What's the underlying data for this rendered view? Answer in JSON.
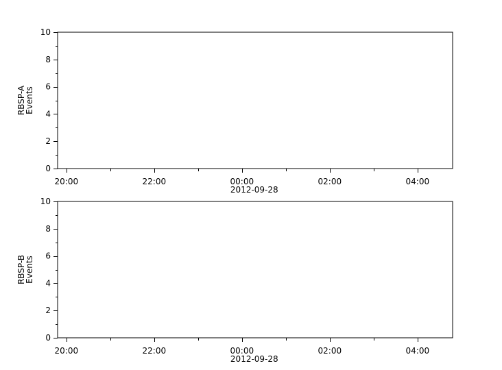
{
  "chart_data": [
    {
      "type": "line",
      "ylabel": [
        "RBSP-A",
        "Events"
      ],
      "ylim": [
        0,
        10
      ],
      "yticks": [
        "0",
        "2",
        "4",
        "6",
        "8",
        "10"
      ],
      "xlim": [
        "2012-09-27T19:48",
        "2012-09-28T04:48"
      ],
      "xticks": [
        "20:00",
        "22:00",
        "00:00",
        "02:00",
        "04:00"
      ],
      "xtick_date_label": "2012-09-28",
      "series": [],
      "grid": false
    },
    {
      "type": "line",
      "ylabel": [
        "RBSP-B",
        "Events"
      ],
      "ylim": [
        0,
        10
      ],
      "yticks": [
        "0",
        "2",
        "4",
        "6",
        "8",
        "10"
      ],
      "xlim": [
        "2012-09-27T19:48",
        "2012-09-28T04:48"
      ],
      "xticks": [
        "20:00",
        "22:00",
        "00:00",
        "02:00",
        "04:00"
      ],
      "xtick_date_label": "2012-09-28",
      "series": [],
      "grid": false
    }
  ]
}
